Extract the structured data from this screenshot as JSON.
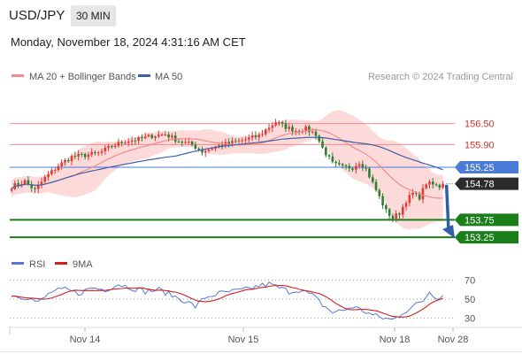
{
  "header": {
    "symbol": "USD/JPY",
    "timeframe": "30 MIN",
    "timestamp": "Monday, November 18, 2024 4:31:16 AM CET"
  },
  "legend": {
    "ma20": "MA 20 + Bollinger Bands",
    "ma50": "MA 50",
    "credit": "Research © 2024 Trading Central",
    "rsi": "RSI",
    "rsi_ma": "9MA"
  },
  "colors": {
    "up": "#e53935",
    "down": "#2e7d32",
    "ma20": "#f48a8a",
    "ma50": "#3f5fa8",
    "band": "#fbd3d3",
    "resistance": "#f28b8b",
    "pivot": "#4a7bd8",
    "support": "#1a7f1a",
    "price": "#2b2b2b",
    "arrow": "#2e5ea8",
    "rsi": "#5577d8",
    "rsi_ma": "#d51f1f"
  },
  "chart_data": {
    "type": "candlestick",
    "ylim": [
      152.95,
      157.3
    ],
    "x_tick_labels": [
      "Nov 14",
      "Nov 15",
      "Nov 18",
      "Nov 28"
    ],
    "levels": [
      {
        "label": "156.50",
        "value": 156.5,
        "kind": "resistance"
      },
      {
        "label": "155.90",
        "value": 155.9,
        "kind": "resistance"
      },
      {
        "label": "155.25",
        "value": 155.25,
        "kind": "pivot"
      },
      {
        "label": "154.78",
        "value": 154.78,
        "kind": "price"
      },
      {
        "label": "153.75",
        "value": 153.75,
        "kind": "support"
      },
      {
        "label": "153.25",
        "value": 153.25,
        "kind": "support"
      }
    ],
    "forecast": {
      "from": 154.75,
      "to": 153.25
    },
    "price_waypoints": [
      [
        0,
        154.7
      ],
      [
        4,
        154.85
      ],
      [
        7,
        154.6
      ],
      [
        10,
        154.95
      ],
      [
        14,
        155.3
      ],
      [
        18,
        155.55
      ],
      [
        22,
        155.6
      ],
      [
        26,
        155.65
      ],
      [
        30,
        155.85
      ],
      [
        34,
        156.0
      ],
      [
        38,
        156.05
      ],
      [
        42,
        156.15
      ],
      [
        46,
        156.2
      ],
      [
        50,
        156.0
      ],
      [
        54,
        155.9
      ],
      [
        57,
        155.7
      ],
      [
        60,
        155.8
      ],
      [
        63,
        155.9
      ],
      [
        66,
        155.95
      ],
      [
        70,
        156.05
      ],
      [
        74,
        156.15
      ],
      [
        77,
        156.4
      ],
      [
        79,
        156.55
      ],
      [
        82,
        156.4
      ],
      [
        85,
        156.3
      ],
      [
        88,
        156.35
      ],
      [
        91,
        156.2
      ],
      [
        93,
        155.8
      ],
      [
        96,
        155.35
      ],
      [
        99,
        155.25
      ],
      [
        102,
        155.25
      ],
      [
        104,
        155.4
      ],
      [
        106,
        155.2
      ],
      [
        108,
        154.8
      ],
      [
        110,
        154.4
      ],
      [
        112,
        154.0
      ],
      [
        114,
        153.8
      ],
      [
        116,
        153.95
      ],
      [
        118,
        154.3
      ],
      [
        120,
        154.5
      ],
      [
        122,
        154.4
      ],
      [
        124,
        154.8
      ],
      [
        126,
        154.75
      ],
      [
        128,
        154.7
      ],
      [
        129,
        154.78
      ]
    ],
    "rsi": {
      "ylim": [
        20,
        80
      ],
      "ticks": [
        70,
        50,
        30
      ],
      "waypoints": [
        [
          0,
          54
        ],
        [
          5,
          52
        ],
        [
          8,
          46
        ],
        [
          12,
          58
        ],
        [
          16,
          60
        ],
        [
          20,
          56
        ],
        [
          24,
          62
        ],
        [
          28,
          60
        ],
        [
          32,
          66
        ],
        [
          36,
          62
        ],
        [
          40,
          58
        ],
        [
          44,
          60
        ],
        [
          48,
          54
        ],
        [
          52,
          48
        ],
        [
          55,
          42
        ],
        [
          58,
          52
        ],
        [
          62,
          56
        ],
        [
          66,
          58
        ],
        [
          70,
          60
        ],
        [
          74,
          64
        ],
        [
          77,
          66
        ],
        [
          80,
          62
        ],
        [
          83,
          58
        ],
        [
          86,
          60
        ],
        [
          90,
          54
        ],
        [
          93,
          44
        ],
        [
          96,
          36
        ],
        [
          99,
          38
        ],
        [
          102,
          42
        ],
        [
          105,
          38
        ],
        [
          108,
          33
        ],
        [
          111,
          30
        ],
        [
          114,
          28
        ],
        [
          117,
          36
        ],
        [
          120,
          42
        ],
        [
          123,
          48
        ],
        [
          125,
          58
        ],
        [
          127,
          52
        ],
        [
          129,
          54
        ]
      ]
    }
  }
}
